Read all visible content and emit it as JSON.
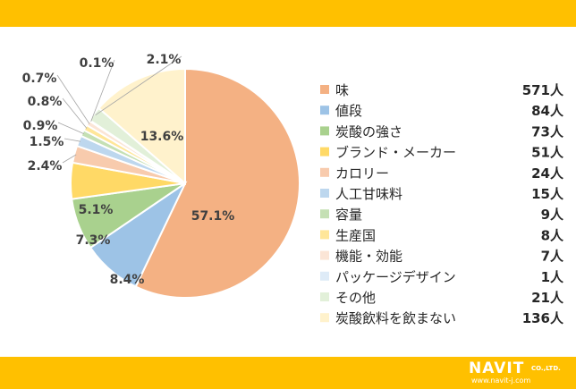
{
  "chart_data": {
    "type": "pie",
    "categories": [
      "味",
      "値段",
      "炭酸の強さ",
      "ブランド・メーカー",
      "カロリー",
      "人工甘味料",
      "容量",
      "生産国",
      "機能・効能",
      "パッケージデザイン",
      "その他",
      "炭酸飲料を飲まない"
    ],
    "counts": [
      "571人",
      "84人",
      "73人",
      "51人",
      "24人",
      "15人",
      "9人",
      "8人",
      "7人",
      "1人",
      "21人",
      "136人"
    ],
    "values": [
      57.1,
      8.4,
      7.3,
      5.1,
      2.4,
      1.5,
      0.9,
      0.8,
      0.7,
      0.1,
      2.1,
      13.6
    ],
    "data_labels": [
      "57.1%",
      "8.4%",
      "7.3%",
      "5.1%",
      "2.4%",
      "1.5%",
      "0.9%",
      "0.8%",
      "0.7%",
      "0.1%",
      "2.1%",
      "13.6%"
    ],
    "colors": [
      "#f4b183",
      "#9dc3e6",
      "#a9d18e",
      "#ffd966",
      "#f8cbad",
      "#bdd7ee",
      "#c5e0b4",
      "#ffe699",
      "#fbe5d6",
      "#deebf7",
      "#e2f0d9",
      "#fff2cc"
    ],
    "legend_position": "right"
  },
  "branding": {
    "logo_text": "NAVIT",
    "company_suffix": "CO.,LTD.",
    "url": "www.navit-j.com"
  }
}
